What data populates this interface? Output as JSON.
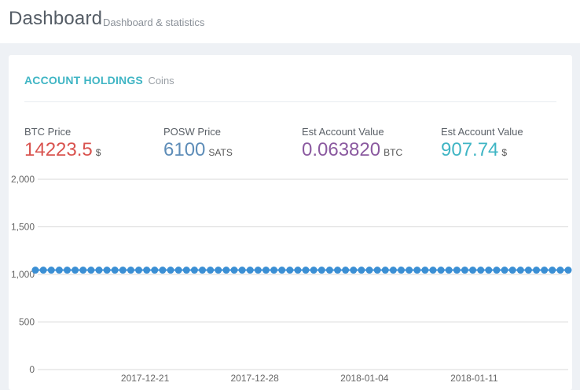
{
  "header": {
    "title": "Dashboard",
    "subtitle": "Dashboard & statistics"
  },
  "portlet": {
    "caption": "ACCOUNT HOLDINGS",
    "caption_helper": "Coins"
  },
  "stats": [
    {
      "label": "BTC Price",
      "value": "14223.5",
      "unit": "$",
      "color": "#d9534f"
    },
    {
      "label": "POSW Price",
      "value": "6100",
      "unit": "SATS",
      "color": "#5e8db8"
    },
    {
      "label": "Est Account Value",
      "value": "0.063820",
      "unit": "BTC",
      "color": "#8b5aa0"
    },
    {
      "label": "Est Account Value",
      "value": "907.74",
      "unit": "$",
      "color": "#3fb5c4"
    }
  ],
  "chart_data": {
    "type": "line",
    "x_tick_labels": [
      "2017-12-21",
      "2017-12-28",
      "2018-01-04",
      "2018-01-11"
    ],
    "y_tick_labels": [
      "2,000",
      "1,500",
      "1,000",
      "500",
      "0"
    ],
    "ylim": [
      0,
      2000
    ],
    "grid": true,
    "series": [
      {
        "color": "#3b8fd4",
        "x_start": "2017-12-14",
        "x_end": "2018-01-17",
        "values": [
          1045,
          1045,
          1045,
          1045,
          1045,
          1045,
          1045,
          1045,
          1045,
          1045,
          1045,
          1045,
          1045,
          1045,
          1045,
          1045,
          1045,
          1045,
          1045,
          1045,
          1045,
          1045,
          1045,
          1045,
          1045,
          1045,
          1045,
          1045,
          1045,
          1045,
          1045,
          1045,
          1045,
          1045,
          1045,
          1045,
          1045,
          1045,
          1045,
          1045,
          1045,
          1045,
          1045,
          1045,
          1045,
          1045,
          1045,
          1045,
          1045,
          1045,
          1045,
          1045,
          1045,
          1045,
          1045,
          1045,
          1045,
          1045,
          1045,
          1045,
          1045,
          1045,
          1045,
          1045,
          1045,
          1045,
          1045,
          1045
        ]
      }
    ]
  }
}
